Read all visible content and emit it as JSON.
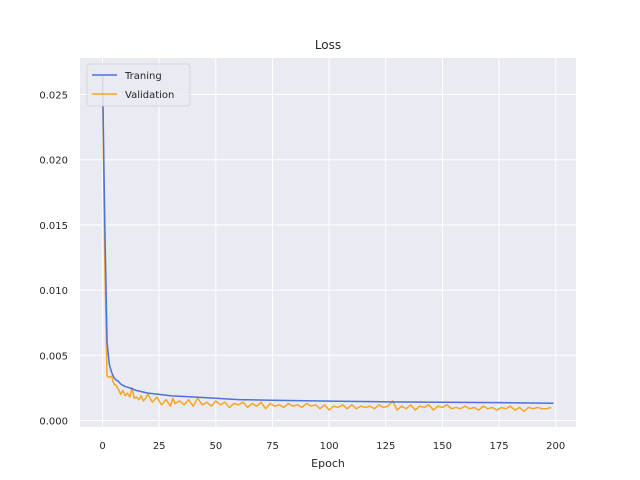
{
  "chart_data": {
    "type": "line",
    "title": "Loss",
    "xlabel": "Epoch",
    "ylabel": "",
    "xlim": [
      -9.95,
      208.95
    ],
    "ylim": [
      -0.0005,
      0.0278
    ],
    "xticks": [
      0,
      25,
      50,
      75,
      100,
      125,
      150,
      175,
      200
    ],
    "xtick_labels": [
      "0",
      "25",
      "50",
      "75",
      "100",
      "125",
      "150",
      "175",
      "200"
    ],
    "yticks": [
      0.0,
      0.005,
      0.01,
      0.015,
      0.02,
      0.025
    ],
    "ytick_labels": [
      "0.000",
      "0.005",
      "0.010",
      "0.015",
      "0.020",
      "0.025"
    ],
    "grid": true,
    "legend_position": "top-left",
    "background": "#eaeaf2",
    "series": [
      {
        "name": "Traning",
        "color": "#4c72d9",
        "x": [
          0,
          1,
          2,
          3,
          4,
          5,
          6,
          7,
          8,
          10,
          12,
          15,
          20,
          25,
          30,
          40,
          50,
          60,
          75,
          100,
          125,
          150,
          175,
          199
        ],
        "values": [
          0.0265,
          0.015,
          0.006,
          0.0043,
          0.0037,
          0.0033,
          0.0031,
          0.003,
          0.0028,
          0.0026,
          0.0025,
          0.0023,
          0.0021,
          0.002,
          0.0019,
          0.0018,
          0.0017,
          0.0016,
          0.00155,
          0.00148,
          0.00143,
          0.0014,
          0.00137,
          0.00132
        ]
      },
      {
        "name": "Validation",
        "color": "#f5a623",
        "x": [
          0,
          1,
          2,
          3,
          4,
          5,
          6,
          7,
          8,
          9,
          10,
          11,
          12,
          13,
          14,
          15,
          16,
          17,
          18,
          19,
          20,
          22,
          24,
          26,
          28,
          30,
          31,
          32,
          34,
          36,
          38,
          40,
          42,
          44,
          46,
          48,
          50,
          52,
          54,
          56,
          58,
          60,
          62,
          64,
          66,
          68,
          70,
          72,
          74,
          76,
          78,
          80,
          82,
          84,
          86,
          88,
          90,
          92,
          94,
          96,
          98,
          100,
          102,
          104,
          106,
          108,
          110,
          112,
          114,
          116,
          118,
          120,
          122,
          124,
          126,
          128,
          130,
          132,
          134,
          136,
          138,
          140,
          142,
          144,
          146,
          148,
          150,
          152,
          154,
          156,
          158,
          160,
          162,
          164,
          166,
          168,
          170,
          172,
          174,
          176,
          178,
          180,
          182,
          184,
          186,
          188,
          190,
          192,
          194,
          196,
          198
        ],
        "values": [
          0.0255,
          0.012,
          0.0034,
          0.0033,
          0.0034,
          0.0028,
          0.0027,
          0.0024,
          0.002,
          0.0023,
          0.0019,
          0.0021,
          0.0018,
          0.0025,
          0.0017,
          0.0018,
          0.0016,
          0.0019,
          0.0015,
          0.0017,
          0.002,
          0.0014,
          0.0018,
          0.0012,
          0.0016,
          0.0011,
          0.0017,
          0.0013,
          0.0015,
          0.0012,
          0.0016,
          0.0011,
          0.0017,
          0.0012,
          0.0014,
          0.0011,
          0.0015,
          0.0012,
          0.0014,
          0.001,
          0.0013,
          0.0012,
          0.0014,
          0.001,
          0.0013,
          0.0011,
          0.0014,
          0.0009,
          0.0013,
          0.0011,
          0.0012,
          0.001,
          0.0013,
          0.0011,
          0.0012,
          0.001,
          0.0013,
          0.0011,
          0.0012,
          0.0009,
          0.0012,
          0.0008,
          0.0011,
          0.001,
          0.0012,
          0.0009,
          0.0012,
          0.0009,
          0.0011,
          0.001,
          0.0011,
          0.0009,
          0.0012,
          0.001,
          0.0011,
          0.0015,
          0.0008,
          0.0011,
          0.0009,
          0.0012,
          0.0008,
          0.0011,
          0.001,
          0.0012,
          0.0008,
          0.0011,
          0.001,
          0.0012,
          0.0009,
          0.001,
          0.0009,
          0.0011,
          0.0009,
          0.001,
          0.0008,
          0.0011,
          0.0009,
          0.001,
          0.0008,
          0.001,
          0.0009,
          0.0011,
          0.0008,
          0.001,
          0.0007,
          0.001,
          0.0009,
          0.001,
          0.0009,
          0.0009,
          0.001
        ]
      }
    ]
  }
}
